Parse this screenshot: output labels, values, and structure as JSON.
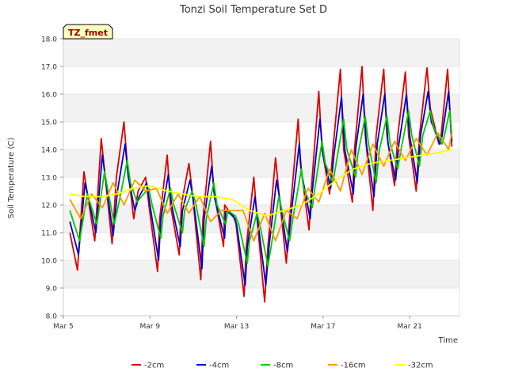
{
  "chart_data": {
    "type": "line",
    "title": "Tonzi Soil Temperature Set D",
    "xlabel": "Time",
    "ylabel": "Soil Temperature (C)",
    "badge": "TZ_fmet",
    "x_unit": "days since Mar 5",
    "xlim": [
      0,
      18.3
    ],
    "ylim": [
      8.0,
      18.0
    ],
    "y_ticks": [
      8.0,
      9.0,
      10.0,
      11.0,
      12.0,
      13.0,
      14.0,
      15.0,
      16.0,
      17.0,
      18.0
    ],
    "y_tick_labels": [
      "8.0",
      "9.0",
      "10.0",
      "11.0",
      "12.0",
      "13.0",
      "14.0",
      "15.0",
      "16.0",
      "17.0",
      "18.0"
    ],
    "x_ticks": [
      0,
      4,
      8,
      12,
      16
    ],
    "x_tick_labels": [
      "Mar 5",
      "Mar 9",
      "Mar 13",
      "Mar 17",
      "Mar 21"
    ],
    "grid": "horizontal bands",
    "legend_position": "bottom",
    "series": [
      {
        "name": "-2cm",
        "color": "#dd0000",
        "x": [
          0.3,
          0.65,
          0.95,
          1.45,
          1.75,
          2.25,
          2.45,
          2.8,
          2.95,
          3.25,
          3.45,
          3.8,
          3.95,
          4.35,
          4.45,
          4.8,
          4.95,
          5.35,
          5.45,
          5.8,
          5.95,
          6.35,
          6.45,
          6.8,
          6.95,
          7.4,
          7.45,
          7.8,
          7.95,
          8.35,
          8.45,
          8.8,
          8.95,
          9.3,
          9.45,
          9.8,
          9.95,
          10.3,
          10.45,
          10.85,
          10.95,
          11.35,
          11.45,
          11.8,
          11.95,
          12.3,
          12.45,
          12.8,
          12.95,
          13.35,
          13.45,
          13.8,
          13.95,
          14.3,
          14.45,
          14.8,
          14.95,
          15.3,
          15.45,
          15.8,
          15.95,
          16.3,
          16.45,
          16.8,
          16.95,
          17.35,
          17.45,
          17.75,
          17.95
        ],
        "y": [
          11.0,
          9.65,
          13.2,
          10.7,
          14.4,
          10.6,
          13.0,
          15.0,
          13.5,
          11.5,
          12.5,
          13.0,
          12.0,
          9.6,
          11.5,
          13.8,
          12.0,
          10.2,
          12.0,
          13.5,
          12.5,
          9.3,
          11.5,
          14.3,
          12.5,
          10.5,
          12.0,
          11.6,
          11.5,
          8.7,
          10.5,
          13.0,
          11.5,
          8.5,
          10.5,
          13.7,
          12.5,
          9.9,
          11.5,
          15.1,
          13.5,
          11.1,
          12.5,
          16.1,
          14.0,
          12.4,
          14.0,
          16.9,
          14.0,
          12.1,
          14.0,
          17.0,
          14.5,
          11.8,
          14.5,
          16.9,
          14.5,
          12.7,
          14.5,
          16.8,
          14.5,
          12.5,
          14.5,
          16.95,
          15.5,
          14.2,
          14.5,
          16.9,
          14.1
        ]
      },
      {
        "name": "-4cm",
        "color": "#0000cc",
        "x": [
          0.3,
          0.7,
          1.0,
          1.5,
          1.8,
          2.3,
          2.5,
          2.85,
          3.0,
          3.3,
          3.5,
          3.85,
          4.0,
          4.4,
          4.5,
          4.85,
          5.0,
          5.4,
          5.5,
          5.85,
          6.0,
          6.4,
          6.5,
          6.85,
          7.0,
          7.45,
          7.5,
          7.85,
          8.0,
          8.4,
          8.5,
          8.85,
          9.0,
          9.35,
          9.5,
          9.85,
          10.0,
          10.35,
          10.5,
          10.9,
          11.0,
          11.4,
          11.5,
          11.85,
          12.0,
          12.35,
          12.5,
          12.85,
          13.0,
          13.4,
          13.5,
          13.85,
          14.0,
          14.35,
          14.5,
          14.85,
          15.0,
          15.35,
          15.5,
          15.85,
          16.0,
          16.35,
          16.5,
          16.85,
          17.0,
          17.4,
          17.5,
          17.8,
          17.95
        ],
        "y": [
          11.4,
          10.2,
          12.8,
          11.0,
          13.8,
          10.9,
          12.5,
          14.2,
          13.0,
          11.8,
          12.3,
          12.8,
          12.0,
          10.0,
          11.5,
          13.1,
          12.0,
          10.5,
          11.8,
          12.9,
          12.2,
          9.7,
          11.5,
          13.4,
          12.2,
          10.8,
          11.8,
          11.6,
          11.3,
          9.1,
          10.5,
          12.3,
          11.3,
          9.1,
          10.5,
          12.9,
          12.2,
          10.3,
          11.5,
          14.2,
          13.2,
          11.5,
          12.5,
          15.1,
          13.8,
          12.6,
          13.8,
          15.9,
          14.0,
          12.4,
          14.0,
          16.0,
          14.2,
          12.3,
          14.2,
          16.0,
          14.2,
          12.9,
          14.2,
          16.0,
          14.5,
          12.8,
          14.5,
          16.1,
          15.0,
          14.2,
          14.5,
          16.1,
          14.3
        ]
      },
      {
        "name": "-8cm",
        "color": "#00cc00",
        "x": [
          0.3,
          0.75,
          1.1,
          1.55,
          1.9,
          2.35,
          2.6,
          2.95,
          3.1,
          3.4,
          3.6,
          3.95,
          4.1,
          4.5,
          4.6,
          4.95,
          5.1,
          5.5,
          5.6,
          5.95,
          6.1,
          6.5,
          6.6,
          6.95,
          7.1,
          7.5,
          7.6,
          7.95,
          8.1,
          8.5,
          8.6,
          8.95,
          9.1,
          9.45,
          9.6,
          9.95,
          10.1,
          10.45,
          10.6,
          11.0,
          11.1,
          11.5,
          11.6,
          11.95,
          12.1,
          12.45,
          12.6,
          12.95,
          13.1,
          13.5,
          13.6,
          13.95,
          14.1,
          14.45,
          14.6,
          14.95,
          15.1,
          15.45,
          15.6,
          15.95,
          16.1,
          16.45,
          16.6,
          16.95,
          17.1,
          17.5,
          17.6,
          17.85,
          17.95
        ],
        "y": [
          11.8,
          10.7,
          12.4,
          11.3,
          13.2,
          11.3,
          12.2,
          13.6,
          12.8,
          12.1,
          12.3,
          12.6,
          12.0,
          10.8,
          11.6,
          12.6,
          12.0,
          11.0,
          11.8,
          12.5,
          12.1,
          10.5,
          11.5,
          12.8,
          12.0,
          11.3,
          11.8,
          11.6,
          11.3,
          9.9,
          10.7,
          11.7,
          11.2,
          9.8,
          10.5,
          12.3,
          11.8,
          10.7,
          11.5,
          13.3,
          12.6,
          11.9,
          12.5,
          14.3,
          13.5,
          12.8,
          13.5,
          15.1,
          14.0,
          13.0,
          13.8,
          15.2,
          14.2,
          12.8,
          14.0,
          15.2,
          14.2,
          13.3,
          14.0,
          15.4,
          14.5,
          13.4,
          14.5,
          15.4,
          14.8,
          14.2,
          14.5,
          15.4,
          14.5
        ]
      },
      {
        "name": "-16cm",
        "color": "#ff9900",
        "x": [
          0.3,
          0.8,
          1.3,
          1.8,
          2.3,
          2.8,
          3.3,
          3.8,
          4.3,
          4.8,
          5.3,
          5.8,
          6.3,
          6.8,
          7.3,
          7.8,
          8.3,
          8.8,
          9.3,
          9.8,
          10.3,
          10.8,
          11.3,
          11.8,
          12.3,
          12.8,
          13.3,
          13.8,
          14.3,
          14.8,
          15.3,
          15.8,
          16.3,
          16.8,
          17.3,
          17.8,
          17.95
        ],
        "y": [
          12.2,
          11.5,
          12.4,
          11.9,
          12.8,
          12.0,
          12.9,
          12.5,
          12.6,
          11.7,
          12.4,
          11.7,
          12.3,
          11.4,
          11.8,
          11.8,
          11.8,
          10.7,
          11.7,
          10.7,
          11.8,
          11.5,
          12.6,
          12.1,
          13.3,
          12.5,
          14.0,
          13.1,
          14.2,
          13.4,
          14.3,
          13.6,
          14.4,
          13.8,
          14.6,
          14.0,
          14.6
        ]
      },
      {
        "name": "-32cm",
        "color": "#ffff00",
        "x": [
          0.3,
          1.0,
          1.8,
          2.5,
          3.2,
          4.0,
          4.8,
          5.5,
          6.2,
          7.0,
          7.8,
          8.6,
          9.4,
          10.2,
          11.0,
          11.8,
          12.6,
          13.4,
          14.2,
          15.0,
          15.8,
          16.6,
          17.4,
          17.95
        ],
        "y": [
          12.4,
          12.3,
          12.3,
          12.4,
          12.6,
          12.7,
          12.5,
          12.4,
          12.3,
          12.3,
          12.2,
          11.8,
          11.6,
          11.8,
          12.0,
          12.4,
          12.9,
          13.3,
          13.5,
          13.6,
          13.7,
          13.8,
          13.9,
          14.0
        ]
      }
    ]
  }
}
